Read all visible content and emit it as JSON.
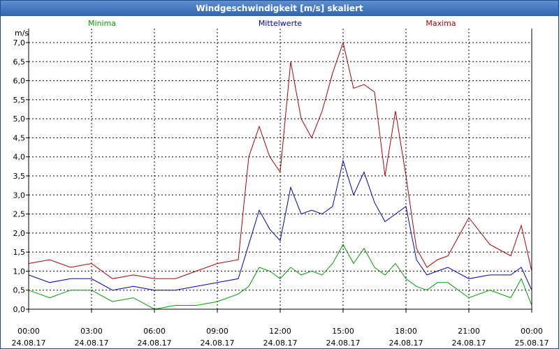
{
  "window": {
    "title": "Windgeschwindigkeit [m/s] skaliert"
  },
  "chart_data": {
    "type": "line",
    "title": "Windgeschwindigkeit [m/s] skaliert",
    "ylabel": "m/s",
    "ylim": [
      0,
      7
    ],
    "y_ticks": [
      "0,0",
      "0,5",
      "1,0",
      "1,5",
      "2,0",
      "2,5",
      "3,0",
      "3,5",
      "4,0",
      "4,5",
      "5,0",
      "5,5",
      "6,0",
      "6,5",
      "7,0"
    ],
    "x_ticks": [
      {
        "time": "00:00",
        "date": "24.08.17"
      },
      {
        "time": "03:00",
        "date": "24.08.17"
      },
      {
        "time": "06:00",
        "date": "24.08.17"
      },
      {
        "time": "09:00",
        "date": "24.08.17"
      },
      {
        "time": "12:00",
        "date": "24.08.17"
      },
      {
        "time": "15:00",
        "date": "24.08.17"
      },
      {
        "time": "18:00",
        "date": "24.08.17"
      },
      {
        "time": "21:00",
        "date": "24.08.17"
      },
      {
        "time": "00:00",
        "date": "25.08.17"
      }
    ],
    "x_range_hours": [
      0,
      24
    ],
    "grid": true,
    "legend_position": "top",
    "series": [
      {
        "name": "Minima",
        "color": "#00a000",
        "x_hours": [
          0,
          1,
          2,
          3,
          4,
          5,
          6,
          7,
          8,
          9,
          10,
          10.5,
          11,
          11.5,
          12,
          12.5,
          13,
          13.5,
          14,
          14.5,
          15,
          15.5,
          16,
          16.5,
          17,
          17.5,
          18,
          18.5,
          19,
          19.5,
          20,
          21,
          22,
          23,
          23.5,
          24
        ],
        "values": [
          0.5,
          0.3,
          0.5,
          0.5,
          0.2,
          0.3,
          0,
          0.1,
          0.1,
          0.2,
          0.4,
          0.6,
          1.1,
          1.0,
          0.8,
          1.1,
          0.9,
          1.0,
          0.9,
          1.2,
          1.7,
          1.2,
          1.6,
          1.1,
          0.9,
          1.2,
          0.8,
          0.6,
          0.5,
          0.7,
          0.7,
          0.3,
          0.5,
          0.3,
          0.8,
          0.1
        ]
      },
      {
        "name": "Mittelwerte",
        "color": "#0000c0",
        "x_hours": [
          0,
          1,
          2,
          3,
          4,
          5,
          6,
          7,
          8,
          9,
          10,
          10.5,
          11,
          11.5,
          12,
          12.5,
          13,
          13.5,
          14,
          14.5,
          15,
          15.5,
          16,
          16.5,
          17,
          17.5,
          18,
          18.5,
          19,
          19.5,
          20,
          21,
          22,
          23,
          23.5,
          24
        ],
        "values": [
          0.9,
          0.7,
          0.8,
          0.8,
          0.5,
          0.6,
          0.5,
          0.5,
          0.6,
          0.7,
          0.8,
          1.7,
          2.6,
          2.1,
          1.8,
          3.2,
          2.5,
          2.6,
          2.5,
          2.7,
          3.9,
          3.0,
          3.6,
          2.8,
          2.3,
          2.5,
          2.7,
          1.3,
          0.9,
          1.0,
          1.1,
          0.8,
          0.9,
          0.9,
          1.1,
          0.5
        ]
      },
      {
        "name": "Maxima",
        "color": "#b00000",
        "x_hours": [
          0,
          1,
          2,
          3,
          4,
          5,
          6,
          7,
          8,
          9,
          10,
          10.5,
          11,
          11.5,
          12,
          12.5,
          13,
          13.5,
          14,
          14.5,
          15,
          15.5,
          16,
          16.5,
          17,
          17.5,
          18,
          18.5,
          19,
          19.5,
          20,
          21,
          22,
          23,
          23.5,
          24
        ],
        "values": [
          1.2,
          1.3,
          1.1,
          1.2,
          0.8,
          0.9,
          0.8,
          0.8,
          1.0,
          1.2,
          1.3,
          4.0,
          4.8,
          4.0,
          3.6,
          6.5,
          5.0,
          4.5,
          5.2,
          6.2,
          7.0,
          5.8,
          5.9,
          5.7,
          3.5,
          5.2,
          3.5,
          1.6,
          1.1,
          1.3,
          1.4,
          2.4,
          1.7,
          1.4,
          2.2,
          1.0
        ]
      }
    ]
  }
}
